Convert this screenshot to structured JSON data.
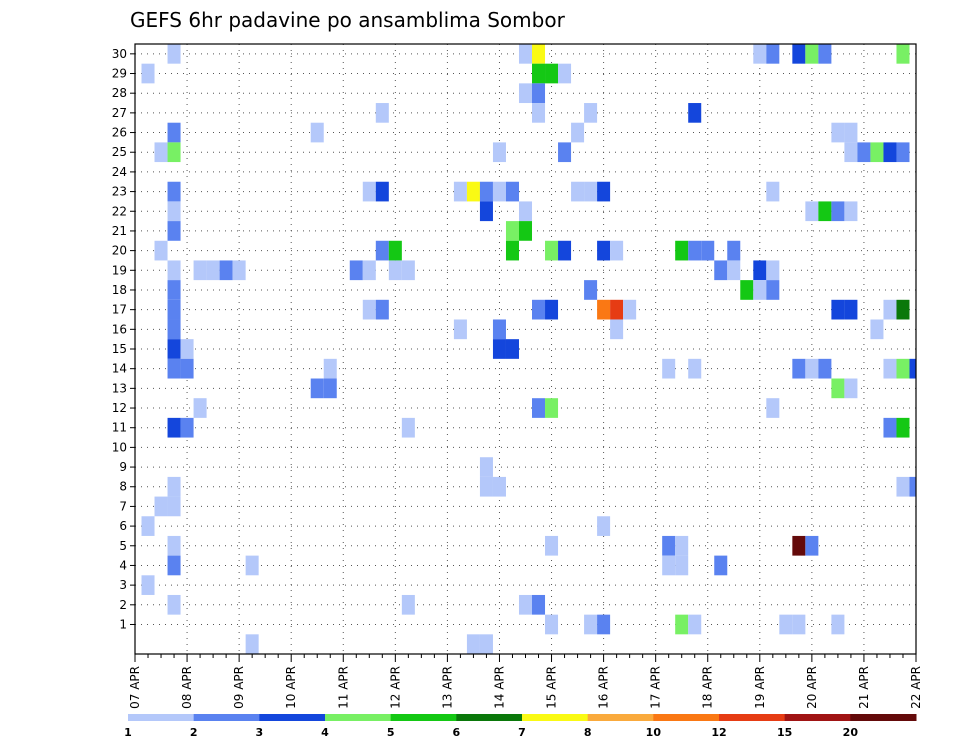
{
  "chart_data": {
    "type": "heatmap",
    "title": "GEFS 6hr padavine po ansamblima Sombor",
    "xlabel": "",
    "ylabel": "",
    "x_range": [
      "07 APR 00Z",
      "22 APR 00Z"
    ],
    "x_steps_per_day": 4,
    "y_range": [
      1,
      30
    ],
    "grid": true,
    "x_tick_labels": [
      "07 APR",
      "08 APR",
      "09 APR",
      "10 APR",
      "11 APR",
      "12 APR",
      "13 APR",
      "14 APR",
      "15 APR",
      "16 APR",
      "17 APR",
      "18 APR",
      "19 APR",
      "20 APR",
      "21 APR",
      "22 APR"
    ],
    "y_tick_labels": [
      "1",
      "2",
      "3",
      "4",
      "5",
      "6",
      "7",
      "8",
      "9",
      "10",
      "11",
      "12",
      "13",
      "14",
      "15",
      "16",
      "17",
      "18",
      "19",
      "20",
      "21",
      "22",
      "23",
      "24",
      "25",
      "26",
      "27",
      "28",
      "29",
      "30"
    ],
    "legend": {
      "placement": "bottom",
      "labels": [
        "1",
        "2",
        "3",
        "4",
        "5",
        "6",
        "7",
        "8",
        "10",
        "12",
        "15",
        "20"
      ],
      "colors": [
        "#b4c8fa",
        "#5a82f0",
        "#1446dc",
        "#78f064",
        "#14c814",
        "#0a780a",
        "#fafa14",
        "#faaa3c",
        "#fa7814",
        "#e63c14",
        "#a01414",
        "#640a0a"
      ]
    },
    "cells": [
      {
        "member": 30,
        "x": "07 APR 18Z",
        "v": 1
      },
      {
        "member": 30,
        "x": "14 APR 12Z",
        "v": 1
      },
      {
        "member": 30,
        "x": "14 APR 18Z",
        "v": 7
      },
      {
        "member": 30,
        "x": "19 APR 00Z",
        "v": 1
      },
      {
        "member": 30,
        "x": "19 APR 06Z",
        "v": 2
      },
      {
        "member": 30,
        "x": "19 APR 18Z",
        "v": 3
      },
      {
        "member": 30,
        "x": "20 APR 00Z",
        "v": 4
      },
      {
        "member": 30,
        "x": "20 APR 06Z",
        "v": 2
      },
      {
        "member": 30,
        "x": "21 APR 18Z",
        "v": 4
      },
      {
        "member": 29,
        "x": "07 APR 06Z",
        "v": 1
      },
      {
        "member": 29,
        "x": "14 APR 18Z",
        "v": 5
      },
      {
        "member": 29,
        "x": "15 APR 00Z",
        "v": 5
      },
      {
        "member": 29,
        "x": "15 APR 06Z",
        "v": 1
      },
      {
        "member": 28,
        "x": "14 APR 12Z",
        "v": 1
      },
      {
        "member": 28,
        "x": "14 APR 18Z",
        "v": 2
      },
      {
        "member": 27,
        "x": "11 APR 18Z",
        "v": 1
      },
      {
        "member": 27,
        "x": "14 APR 18Z",
        "v": 1
      },
      {
        "member": 27,
        "x": "15 APR 18Z",
        "v": 1
      },
      {
        "member": 27,
        "x": "17 APR 18Z",
        "v": 3
      },
      {
        "member": 26,
        "x": "07 APR 18Z",
        "v": 2
      },
      {
        "member": 26,
        "x": "10 APR 12Z",
        "v": 1
      },
      {
        "member": 26,
        "x": "15 APR 12Z",
        "v": 1
      },
      {
        "member": 26,
        "x": "20 APR 12Z",
        "v": 1
      },
      {
        "member": 26,
        "x": "20 APR 18Z",
        "v": 1
      },
      {
        "member": 25,
        "x": "07 APR 12Z",
        "v": 1
      },
      {
        "member": 25,
        "x": "07 APR 18Z",
        "v": 4
      },
      {
        "member": 25,
        "x": "14 APR 00Z",
        "v": 1
      },
      {
        "member": 25,
        "x": "15 APR 06Z",
        "v": 2
      },
      {
        "member": 25,
        "x": "20 APR 18Z",
        "v": 1
      },
      {
        "member": 25,
        "x": "21 APR 00Z",
        "v": 2
      },
      {
        "member": 25,
        "x": "21 APR 06Z",
        "v": 4
      },
      {
        "member": 25,
        "x": "21 APR 12Z",
        "v": 3
      },
      {
        "member": 25,
        "x": "21 APR 18Z",
        "v": 2
      },
      {
        "member": 23,
        "x": "07 APR 18Z",
        "v": 2
      },
      {
        "member": 23,
        "x": "11 APR 12Z",
        "v": 1
      },
      {
        "member": 23,
        "x": "11 APR 18Z",
        "v": 3
      },
      {
        "member": 23,
        "x": "13 APR 06Z",
        "v": 1
      },
      {
        "member": 23,
        "x": "13 APR 12Z",
        "v": 7
      },
      {
        "member": 23,
        "x": "13 APR 18Z",
        "v": 2
      },
      {
        "member": 23,
        "x": "14 APR 00Z",
        "v": 1
      },
      {
        "member": 23,
        "x": "14 APR 06Z",
        "v": 2
      },
      {
        "member": 23,
        "x": "15 APR 12Z",
        "v": 1
      },
      {
        "member": 23,
        "x": "15 APR 18Z",
        "v": 1
      },
      {
        "member": 23,
        "x": "16 APR 00Z",
        "v": 3
      },
      {
        "member": 23,
        "x": "19 APR 06Z",
        "v": 1
      },
      {
        "member": 22,
        "x": "07 APR 18Z",
        "v": 1
      },
      {
        "member": 22,
        "x": "13 APR 18Z",
        "v": 3
      },
      {
        "member": 22,
        "x": "14 APR 12Z",
        "v": 1
      },
      {
        "member": 22,
        "x": "20 APR 00Z",
        "v": 1
      },
      {
        "member": 22,
        "x": "20 APR 06Z",
        "v": 5
      },
      {
        "member": 22,
        "x": "20 APR 12Z",
        "v": 2
      },
      {
        "member": 22,
        "x": "20 APR 18Z",
        "v": 1
      },
      {
        "member": 21,
        "x": "07 APR 18Z",
        "v": 2
      },
      {
        "member": 21,
        "x": "14 APR 06Z",
        "v": 4
      },
      {
        "member": 21,
        "x": "14 APR 12Z",
        "v": 5
      },
      {
        "member": 20,
        "x": "07 APR 12Z",
        "v": 1
      },
      {
        "member": 20,
        "x": "11 APR 18Z",
        "v": 2
      },
      {
        "member": 20,
        "x": "12 APR 00Z",
        "v": 5
      },
      {
        "member": 20,
        "x": "14 APR 06Z",
        "v": 5
      },
      {
        "member": 20,
        "x": "15 APR 00Z",
        "v": 4
      },
      {
        "member": 20,
        "x": "15 APR 06Z",
        "v": 3
      },
      {
        "member": 20,
        "x": "16 APR 00Z",
        "v": 3
      },
      {
        "member": 20,
        "x": "16 APR 06Z",
        "v": 1
      },
      {
        "member": 20,
        "x": "17 APR 12Z",
        "v": 5
      },
      {
        "member": 20,
        "x": "17 APR 18Z",
        "v": 2
      },
      {
        "member": 20,
        "x": "18 APR 00Z",
        "v": 2
      },
      {
        "member": 20,
        "x": "18 APR 12Z",
        "v": 2
      },
      {
        "member": 19,
        "x": "07 APR 18Z",
        "v": 1
      },
      {
        "member": 19,
        "x": "08 APR 06Z",
        "v": 1
      },
      {
        "member": 19,
        "x": "08 APR 12Z",
        "v": 1
      },
      {
        "member": 19,
        "x": "08 APR 18Z",
        "v": 2
      },
      {
        "member": 19,
        "x": "09 APR 00Z",
        "v": 1
      },
      {
        "member": 19,
        "x": "11 APR 06Z",
        "v": 2
      },
      {
        "member": 19,
        "x": "11 APR 12Z",
        "v": 1
      },
      {
        "member": 19,
        "x": "12 APR 00Z",
        "v": 1
      },
      {
        "member": 19,
        "x": "12 APR 06Z",
        "v": 1
      },
      {
        "member": 19,
        "x": "18 APR 06Z",
        "v": 2
      },
      {
        "member": 19,
        "x": "18 APR 12Z",
        "v": 1
      },
      {
        "member": 19,
        "x": "19 APR 00Z",
        "v": 3
      },
      {
        "member": 19,
        "x": "19 APR 06Z",
        "v": 1
      },
      {
        "member": 18,
        "x": "07 APR 18Z",
        "v": 2
      },
      {
        "member": 18,
        "x": "15 APR 18Z",
        "v": 2
      },
      {
        "member": 18,
        "x": "18 APR 18Z",
        "v": 5
      },
      {
        "member": 18,
        "x": "19 APR 00Z",
        "v": 1
      },
      {
        "member": 18,
        "x": "19 APR 06Z",
        "v": 2
      },
      {
        "member": 17,
        "x": "07 APR 18Z",
        "v": 2
      },
      {
        "member": 17,
        "x": "11 APR 12Z",
        "v": 1
      },
      {
        "member": 17,
        "x": "11 APR 18Z",
        "v": 2
      },
      {
        "member": 17,
        "x": "14 APR 18Z",
        "v": 2
      },
      {
        "member": 17,
        "x": "15 APR 00Z",
        "v": 3
      },
      {
        "member": 17,
        "x": "16 APR 00Z",
        "v": 10
      },
      {
        "member": 17,
        "x": "16 APR 06Z",
        "v": 12
      },
      {
        "member": 17,
        "x": "16 APR 12Z",
        "v": 1
      },
      {
        "member": 17,
        "x": "20 APR 12Z",
        "v": 3
      },
      {
        "member": 17,
        "x": "20 APR 18Z",
        "v": 3
      },
      {
        "member": 17,
        "x": "21 APR 12Z",
        "v": 1
      },
      {
        "member": 17,
        "x": "21 APR 18Z",
        "v": 6
      },
      {
        "member": 16,
        "x": "07 APR 18Z",
        "v": 2
      },
      {
        "member": 16,
        "x": "13 APR 06Z",
        "v": 1
      },
      {
        "member": 16,
        "x": "14 APR 00Z",
        "v": 2
      },
      {
        "member": 16,
        "x": "16 APR 06Z",
        "v": 1
      },
      {
        "member": 16,
        "x": "21 APR 06Z",
        "v": 1
      },
      {
        "member": 15,
        "x": "07 APR 18Z",
        "v": 3
      },
      {
        "member": 15,
        "x": "08 APR 00Z",
        "v": 1
      },
      {
        "member": 15,
        "x": "14 APR 00Z",
        "v": 3
      },
      {
        "member": 15,
        "x": "14 APR 06Z",
        "v": 3
      },
      {
        "member": 14,
        "x": "07 APR 18Z",
        "v": 2
      },
      {
        "member": 14,
        "x": "08 APR 00Z",
        "v": 2
      },
      {
        "member": 14,
        "x": "10 APR 18Z",
        "v": 1
      },
      {
        "member": 14,
        "x": "17 APR 06Z",
        "v": 1
      },
      {
        "member": 14,
        "x": "17 APR 18Z",
        "v": 1
      },
      {
        "member": 14,
        "x": "19 APR 18Z",
        "v": 2
      },
      {
        "member": 14,
        "x": "20 APR 00Z",
        "v": 1
      },
      {
        "member": 14,
        "x": "20 APR 06Z",
        "v": 2
      },
      {
        "member": 14,
        "x": "21 APR 12Z",
        "v": 1
      },
      {
        "member": 14,
        "x": "21 APR 18Z",
        "v": 4
      },
      {
        "member": 14,
        "x": "22 APR 00Z",
        "v": 3
      },
      {
        "member": 13,
        "x": "10 APR 12Z",
        "v": 2
      },
      {
        "member": 13,
        "x": "10 APR 18Z",
        "v": 2
      },
      {
        "member": 13,
        "x": "20 APR 12Z",
        "v": 4
      },
      {
        "member": 13,
        "x": "20 APR 18Z",
        "v": 1
      },
      {
        "member": 12,
        "x": "08 APR 06Z",
        "v": 1
      },
      {
        "member": 12,
        "x": "14 APR 18Z",
        "v": 2
      },
      {
        "member": 12,
        "x": "15 APR 00Z",
        "v": 4
      },
      {
        "member": 12,
        "x": "19 APR 06Z",
        "v": 1
      },
      {
        "member": 11,
        "x": "07 APR 18Z",
        "v": 3
      },
      {
        "member": 11,
        "x": "08 APR 00Z",
        "v": 2
      },
      {
        "member": 11,
        "x": "12 APR 06Z",
        "v": 1
      },
      {
        "member": 11,
        "x": "21 APR 12Z",
        "v": 2
      },
      {
        "member": 11,
        "x": "21 APR 18Z",
        "v": 5
      },
      {
        "member": 9,
        "x": "13 APR 18Z",
        "v": 1
      },
      {
        "member": 8,
        "x": "07 APR 18Z",
        "v": 1
      },
      {
        "member": 8,
        "x": "13 APR 18Z",
        "v": 1
      },
      {
        "member": 8,
        "x": "14 APR 00Z",
        "v": 1
      },
      {
        "member": 8,
        "x": "21 APR 18Z",
        "v": 1
      },
      {
        "member": 8,
        "x": "22 APR 00Z",
        "v": 2
      },
      {
        "member": 7,
        "x": "07 APR 12Z",
        "v": 1
      },
      {
        "member": 7,
        "x": "07 APR 18Z",
        "v": 1
      },
      {
        "member": 6,
        "x": "07 APR 06Z",
        "v": 1
      },
      {
        "member": 6,
        "x": "16 APR 00Z",
        "v": 1
      },
      {
        "member": 5,
        "x": "07 APR 18Z",
        "v": 1
      },
      {
        "member": 5,
        "x": "15 APR 00Z",
        "v": 1
      },
      {
        "member": 5,
        "x": "17 APR 06Z",
        "v": 2
      },
      {
        "member": 5,
        "x": "17 APR 12Z",
        "v": 1
      },
      {
        "member": 5,
        "x": "19 APR 18Z",
        "v": 20
      },
      {
        "member": 5,
        "x": "20 APR 00Z",
        "v": 2
      },
      {
        "member": 4,
        "x": "07 APR 18Z",
        "v": 2
      },
      {
        "member": 4,
        "x": "09 APR 06Z",
        "v": 1
      },
      {
        "member": 4,
        "x": "17 APR 06Z",
        "v": 1
      },
      {
        "member": 4,
        "x": "17 APR 12Z",
        "v": 1
      },
      {
        "member": 4,
        "x": "18 APR 06Z",
        "v": 2
      },
      {
        "member": 3,
        "x": "07 APR 06Z",
        "v": 1
      },
      {
        "member": 2,
        "x": "07 APR 18Z",
        "v": 1
      },
      {
        "member": 2,
        "x": "12 APR 06Z",
        "v": 1
      },
      {
        "member": 2,
        "x": "14 APR 12Z",
        "v": 1
      },
      {
        "member": 2,
        "x": "14 APR 18Z",
        "v": 2
      },
      {
        "member": 1,
        "x": "15 APR 00Z",
        "v": 1
      },
      {
        "member": 1,
        "x": "15 APR 18Z",
        "v": 1
      },
      {
        "member": 1,
        "x": "16 APR 00Z",
        "v": 2
      },
      {
        "member": 1,
        "x": "17 APR 12Z",
        "v": 4
      },
      {
        "member": 1,
        "x": "17 APR 18Z",
        "v": 1
      },
      {
        "member": 1,
        "x": "19 APR 12Z",
        "v": 1
      },
      {
        "member": 1,
        "x": "19 APR 18Z",
        "v": 1
      },
      {
        "member": 1,
        "x": "20 APR 12Z",
        "v": 1
      },
      {
        "member": 0,
        "x": "09 APR 06Z",
        "v": 1
      },
      {
        "member": 0,
        "x": "13 APR 12Z",
        "v": 1
      },
      {
        "member": 0,
        "x": "13 APR 18Z",
        "v": 1
      }
    ]
  }
}
